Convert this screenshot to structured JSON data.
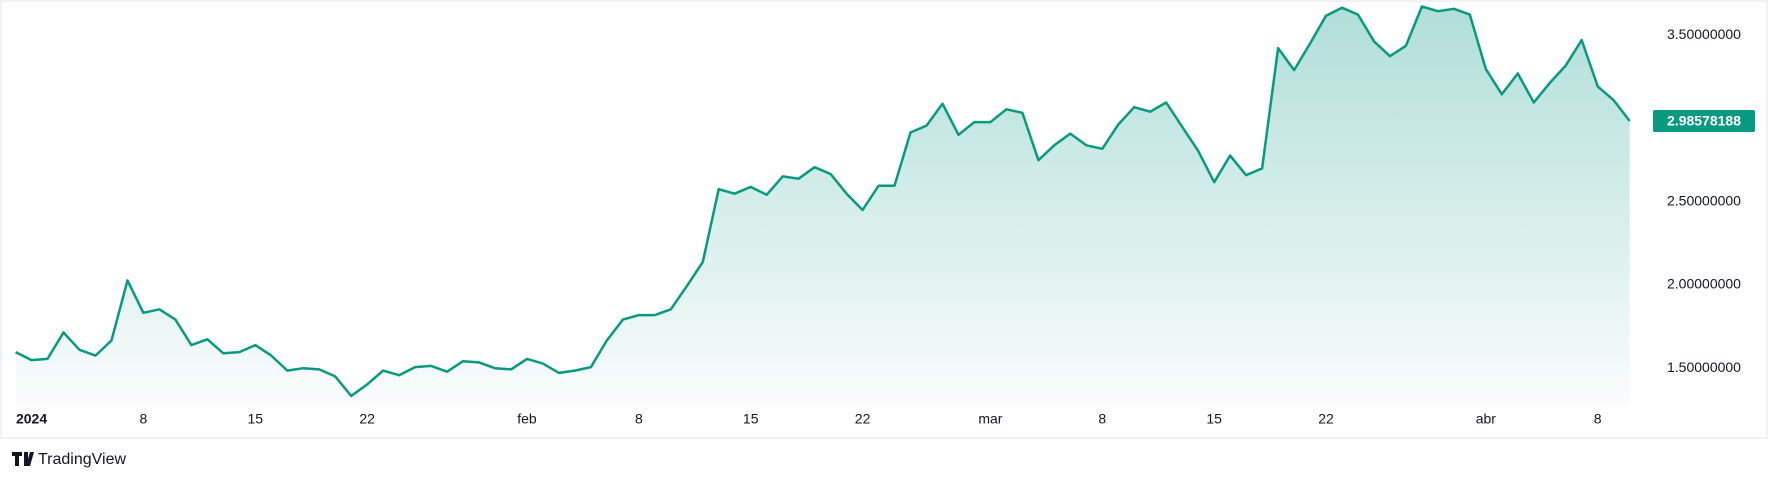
{
  "chart_data": {
    "type": "area",
    "x": [
      -1,
      0,
      1,
      2,
      3,
      4,
      5,
      6,
      7,
      8,
      9,
      10,
      11,
      12,
      13,
      14,
      15,
      16,
      17,
      18,
      19,
      20,
      21,
      22,
      23,
      24,
      25,
      26,
      27,
      28,
      29,
      30,
      31,
      32,
      33,
      34,
      35,
      36,
      37,
      38,
      39,
      40,
      41,
      42,
      43,
      44,
      45,
      46,
      47,
      48,
      49,
      50,
      51,
      52,
      53,
      54,
      55,
      56,
      57,
      58,
      59,
      60,
      61,
      62,
      63,
      64,
      65,
      66,
      67,
      68,
      69,
      70,
      71,
      72,
      73,
      74,
      75,
      76,
      77,
      78,
      79,
      80,
      81,
      82,
      83,
      84,
      85,
      86,
      87,
      88,
      89,
      90,
      91,
      92,
      93,
      94,
      95,
      96,
      97,
      98,
      99,
      100
    ],
    "values": [
      1.597,
      1.549,
      1.556,
      1.715,
      1.611,
      1.576,
      1.667,
      2.028,
      1.833,
      1.854,
      1.792,
      1.639,
      1.674,
      1.59,
      1.597,
      1.639,
      1.576,
      1.486,
      1.5,
      1.493,
      1.451,
      1.333,
      1.403,
      1.486,
      1.458,
      1.507,
      1.514,
      1.479,
      1.542,
      1.535,
      1.5,
      1.493,
      1.556,
      1.528,
      1.472,
      1.486,
      1.507,
      1.667,
      1.792,
      1.819,
      1.819,
      1.854,
      1.993,
      2.139,
      2.576,
      2.549,
      2.59,
      2.542,
      2.653,
      2.639,
      2.708,
      2.667,
      2.549,
      2.451,
      2.597,
      2.597,
      2.917,
      2.958,
      3.09,
      2.903,
      2.979,
      2.979,
      3.056,
      3.035,
      2.75,
      2.84,
      2.91,
      2.84,
      2.819,
      2.965,
      3.069,
      3.042,
      3.097,
      2.951,
      2.806,
      2.618,
      2.778,
      2.66,
      2.701,
      3.424,
      3.292,
      3.451,
      3.618,
      3.667,
      3.625,
      3.465,
      3.375,
      3.438,
      3.674,
      3.646,
      3.66,
      3.625,
      3.299,
      3.146,
      3.271,
      3.097,
      3.215,
      3.319,
      3.472,
      3.194,
      3.111,
      2.98578188
    ],
    "color": "#089981",
    "xlim": [
      -1.85,
      100.96
    ],
    "xticks": [
      {
        "value": 0,
        "label": "2024"
      },
      {
        "value": 7,
        "label": "8"
      },
      {
        "value": 14,
        "label": "15"
      },
      {
        "value": 21,
        "label": "22"
      },
      {
        "value": 31,
        "label": "feb"
      },
      {
        "value": 38,
        "label": "8"
      },
      {
        "value": 45,
        "label": "15"
      },
      {
        "value": 52,
        "label": "22"
      },
      {
        "value": 60,
        "label": "mar"
      },
      {
        "value": 67,
        "label": "8"
      },
      {
        "value": 74,
        "label": "15"
      },
      {
        "value": 81,
        "label": "22"
      },
      {
        "value": 91,
        "label": "abr"
      },
      {
        "value": 98,
        "label": "8"
      }
    ],
    "ylim": [
      1.285,
      3.701
    ],
    "yticks": [
      {
        "value": 1.5,
        "label": "1.50000000"
      },
      {
        "value": 2.0,
        "label": "2.00000000"
      },
      {
        "value": 2.5,
        "label": "2.50000000"
      },
      {
        "value": 3.5,
        "label": "3.50000000"
      }
    ],
    "grid": false,
    "attribution": "TradingView"
  }
}
